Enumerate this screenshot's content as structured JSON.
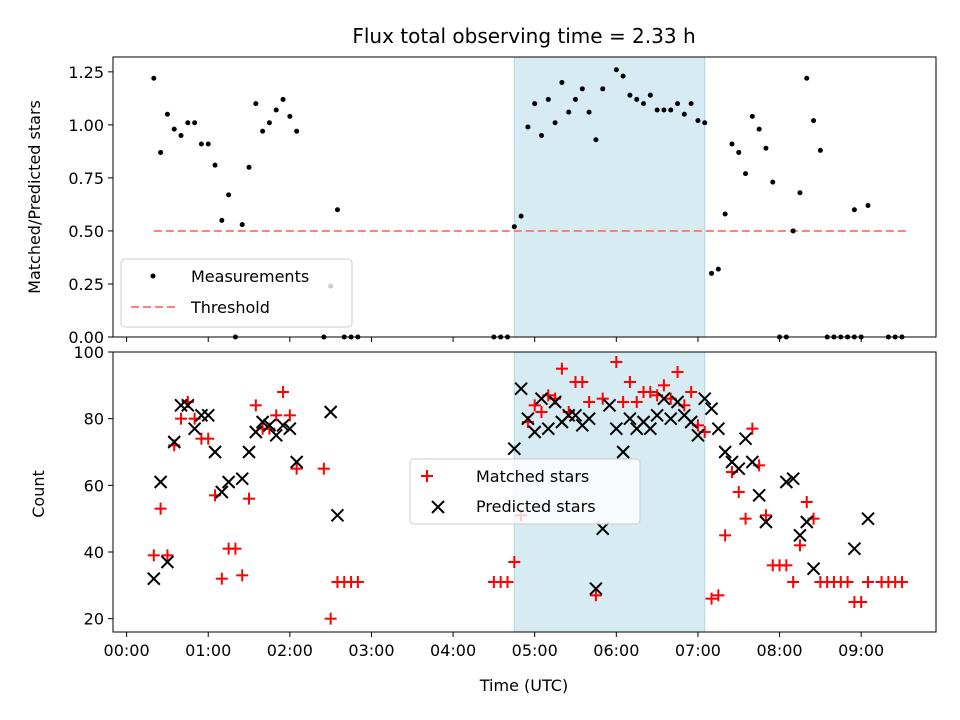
{
  "chart_data": [
    {
      "type": "scatter",
      "title": "Flux total observing time = 2.33 h",
      "xlabel": "",
      "ylabel": "Matched/Predicted stars",
      "xlim": [
        "23:50",
        "09:55"
      ],
      "ylim": [
        0,
        1.32
      ],
      "yticks": [
        "0.00",
        "0.25",
        "0.50",
        "0.75",
        "1.00",
        "1.25"
      ],
      "xticks": [
        "00:00",
        "01:00",
        "02:00",
        "03:00",
        "04:00",
        "05:00",
        "06:00",
        "07:00",
        "08:00",
        "09:00"
      ],
      "highlight": {
        "start": "04:45",
        "end": "07:05",
        "color": "#add8e6"
      },
      "legend": {
        "position": "lower-left",
        "entries": [
          "Measurements",
          "Threshold"
        ]
      },
      "threshold": {
        "name": "Threshold",
        "y": 0.5,
        "x": [
          "00:20",
          "09:35"
        ],
        "color": "#ff7f7f"
      },
      "series": [
        {
          "name": "Measurements",
          "color": "#000000",
          "points": [
            [
              "00:20",
              1.22
            ],
            [
              "00:25",
              0.87
            ],
            [
              "00:30",
              1.05
            ],
            [
              "00:35",
              0.98
            ],
            [
              "00:40",
              0.95
            ],
            [
              "00:45",
              1.01
            ],
            [
              "00:50",
              1.01
            ],
            [
              "00:55",
              0.91
            ],
            [
              "01:00",
              0.91
            ],
            [
              "01:05",
              0.81
            ],
            [
              "01:10",
              0.55
            ],
            [
              "01:15",
              0.67
            ],
            [
              "01:20",
              0.0
            ],
            [
              "01:25",
              0.53
            ],
            [
              "01:30",
              0.8
            ],
            [
              "01:35",
              1.1
            ],
            [
              "01:40",
              0.97
            ],
            [
              "01:45",
              1.01
            ],
            [
              "01:50",
              1.07
            ],
            [
              "01:55",
              1.12
            ],
            [
              "02:00",
              1.04
            ],
            [
              "02:05",
              0.97
            ],
            [
              "02:25",
              0.0
            ],
            [
              "02:30",
              0.24
            ],
            [
              "02:35",
              0.6
            ],
            [
              "02:40",
              0.0
            ],
            [
              "02:45",
              0.0
            ],
            [
              "02:50",
              0.0
            ],
            [
              "04:30",
              0.0
            ],
            [
              "04:35",
              0.0
            ],
            [
              "04:40",
              0.0
            ],
            [
              "04:45",
              0.52
            ],
            [
              "04:50",
              0.57
            ],
            [
              "04:55",
              0.99
            ],
            [
              "05:00",
              1.1
            ],
            [
              "05:05",
              0.95
            ],
            [
              "05:10",
              1.12
            ],
            [
              "05:15",
              1.01
            ],
            [
              "05:20",
              1.2
            ],
            [
              "05:25",
              1.06
            ],
            [
              "05:30",
              1.12
            ],
            [
              "05:35",
              1.17
            ],
            [
              "05:40",
              1.06
            ],
            [
              "05:45",
              0.93
            ],
            [
              "05:50",
              1.17
            ],
            [
              "06:00",
              1.26
            ],
            [
              "06:05",
              1.23
            ],
            [
              "06:10",
              1.14
            ],
            [
              "06:15",
              1.12
            ],
            [
              "06:20",
              1.1
            ],
            [
              "06:25",
              1.14
            ],
            [
              "06:30",
              1.07
            ],
            [
              "06:35",
              1.07
            ],
            [
              "06:40",
              1.07
            ],
            [
              "06:45",
              1.1
            ],
            [
              "06:50",
              1.05
            ],
            [
              "06:55",
              1.1
            ],
            [
              "07:00",
              1.02
            ],
            [
              "07:05",
              1.01
            ],
            [
              "07:10",
              0.3
            ],
            [
              "07:15",
              0.32
            ],
            [
              "07:20",
              0.58
            ],
            [
              "07:25",
              0.91
            ],
            [
              "07:30",
              0.87
            ],
            [
              "07:35",
              0.77
            ],
            [
              "07:40",
              1.04
            ],
            [
              "07:45",
              0.98
            ],
            [
              "07:50",
              0.89
            ],
            [
              "07:55",
              0.73
            ],
            [
              "08:00",
              0.0
            ],
            [
              "08:05",
              0.0
            ],
            [
              "08:10",
              0.5
            ],
            [
              "08:15",
              0.68
            ],
            [
              "08:20",
              1.22
            ],
            [
              "08:25",
              1.02
            ],
            [
              "08:30",
              0.88
            ],
            [
              "08:35",
              0.0
            ],
            [
              "08:40",
              0.0
            ],
            [
              "08:45",
              0.0
            ],
            [
              "08:50",
              0.0
            ],
            [
              "08:55",
              0.0
            ],
            [
              "09:00",
              0.0
            ],
            [
              "08:55",
              0.6
            ],
            [
              "09:05",
              0.62
            ],
            [
              "09:20",
              0.0
            ],
            [
              "09:25",
              0.0
            ],
            [
              "09:30",
              0.0
            ]
          ]
        }
      ]
    },
    {
      "type": "scatter",
      "title": "",
      "xlabel": "Time (UTC)",
      "ylabel": "Count",
      "xlim": [
        "23:50",
        "09:55"
      ],
      "ylim": [
        16,
        100
      ],
      "yticks": [
        "20",
        "40",
        "60",
        "80",
        "100"
      ],
      "xticks": [
        "00:00",
        "01:00",
        "02:00",
        "03:00",
        "04:00",
        "05:00",
        "06:00",
        "07:00",
        "08:00",
        "09:00"
      ],
      "highlight": {
        "start": "04:45",
        "end": "07:05",
        "color": "#add8e6"
      },
      "legend": {
        "position": "center",
        "entries": [
          "Matched stars",
          "Predicted stars"
        ]
      },
      "series": [
        {
          "name": "Matched stars",
          "marker": "plus",
          "color": "#ff0000",
          "points": [
            [
              "00:20",
              39
            ],
            [
              "00:25",
              53
            ],
            [
              "00:30",
              39
            ],
            [
              "00:35",
              72
            ],
            [
              "00:40",
              80
            ],
            [
              "00:45",
              85
            ],
            [
              "00:50",
              80
            ],
            [
              "00:55",
              74
            ],
            [
              "01:00",
              74
            ],
            [
              "01:05",
              57
            ],
            [
              "01:10",
              32
            ],
            [
              "01:15",
              41
            ],
            [
              "01:20",
              41
            ],
            [
              "01:25",
              33
            ],
            [
              "01:30",
              56
            ],
            [
              "01:35",
              84
            ],
            [
              "01:40",
              77
            ],
            [
              "01:45",
              77
            ],
            [
              "01:50",
              81
            ],
            [
              "01:55",
              88
            ],
            [
              "02:00",
              81
            ],
            [
              "02:05",
              65
            ],
            [
              "02:25",
              65
            ],
            [
              "02:30",
              20
            ],
            [
              "02:35",
              31
            ],
            [
              "02:40",
              31
            ],
            [
              "02:45",
              31
            ],
            [
              "02:50",
              31
            ],
            [
              "04:30",
              31
            ],
            [
              "04:35",
              31
            ],
            [
              "04:40",
              31
            ],
            [
              "04:45",
              37
            ],
            [
              "04:50",
              51
            ],
            [
              "04:55",
              79
            ],
            [
              "05:00",
              84
            ],
            [
              "05:05",
              82
            ],
            [
              "05:10",
              87
            ],
            [
              "05:15",
              86
            ],
            [
              "05:20",
              95
            ],
            [
              "05:25",
              82
            ],
            [
              "05:30",
              91
            ],
            [
              "05:35",
              91
            ],
            [
              "05:40",
              85
            ],
            [
              "05:45",
              27
            ],
            [
              "05:50",
              86
            ],
            [
              "06:00",
              97
            ],
            [
              "06:05",
              85
            ],
            [
              "06:10",
              91
            ],
            [
              "06:15",
              85
            ],
            [
              "06:20",
              88
            ],
            [
              "06:25",
              88
            ],
            [
              "06:30",
              87
            ],
            [
              "06:35",
              90
            ],
            [
              "06:40",
              86
            ],
            [
              "06:45",
              94
            ],
            [
              "06:50",
              84
            ],
            [
              "06:55",
              88
            ],
            [
              "07:00",
              78
            ],
            [
              "07:05",
              76
            ],
            [
              "07:10",
              26
            ],
            [
              "07:15",
              27
            ],
            [
              "07:20",
              45
            ],
            [
              "07:25",
              64
            ],
            [
              "07:30",
              58
            ],
            [
              "07:35",
              50
            ],
            [
              "07:40",
              77
            ],
            [
              "07:45",
              66
            ],
            [
              "07:50",
              51
            ],
            [
              "07:55",
              36
            ],
            [
              "08:00",
              36
            ],
            [
              "08:05",
              36
            ],
            [
              "08:10",
              31
            ],
            [
              "08:15",
              42
            ],
            [
              "08:20",
              55
            ],
            [
              "08:25",
              50
            ],
            [
              "08:30",
              31
            ],
            [
              "08:35",
              31
            ],
            [
              "08:40",
              31
            ],
            [
              "08:45",
              31
            ],
            [
              "08:50",
              31
            ],
            [
              "08:55",
              25
            ],
            [
              "09:00",
              25
            ],
            [
              "09:05",
              31
            ],
            [
              "09:15",
              31
            ],
            [
              "09:20",
              31
            ],
            [
              "09:25",
              31
            ],
            [
              "09:30",
              31
            ]
          ]
        },
        {
          "name": "Predicted stars",
          "marker": "x",
          "color": "#000000",
          "points": [
            [
              "00:20",
              32
            ],
            [
              "00:25",
              61
            ],
            [
              "00:30",
              37
            ],
            [
              "00:35",
              73
            ],
            [
              "00:40",
              84
            ],
            [
              "00:45",
              84
            ],
            [
              "00:50",
              77
            ],
            [
              "00:55",
              81
            ],
            [
              "01:00",
              81
            ],
            [
              "01:05",
              70
            ],
            [
              "01:10",
              58
            ],
            [
              "01:15",
              61
            ],
            [
              "01:25",
              62
            ],
            [
              "01:30",
              70
            ],
            [
              "01:35",
              76
            ],
            [
              "01:40",
              79
            ],
            [
              "01:45",
              78
            ],
            [
              "01:50",
              75
            ],
            [
              "01:55",
              78
            ],
            [
              "02:00",
              77
            ],
            [
              "02:05",
              67
            ],
            [
              "02:30",
              82
            ],
            [
              "02:35",
              51
            ],
            [
              "04:45",
              71
            ],
            [
              "04:50",
              89
            ],
            [
              "04:55",
              80
            ],
            [
              "05:00",
              76
            ],
            [
              "05:05",
              86
            ],
            [
              "05:10",
              77
            ],
            [
              "05:15",
              85
            ],
            [
              "05:20",
              79
            ],
            [
              "05:25",
              81
            ],
            [
              "05:30",
              81
            ],
            [
              "05:35",
              78
            ],
            [
              "05:40",
              80
            ],
            [
              "05:45",
              29
            ],
            [
              "05:50",
              47
            ],
            [
              "05:55",
              84
            ],
            [
              "06:00",
              77
            ],
            [
              "06:05",
              70
            ],
            [
              "06:10",
              80
            ],
            [
              "06:15",
              77
            ],
            [
              "06:20",
              79
            ],
            [
              "06:25",
              77
            ],
            [
              "06:30",
              81
            ],
            [
              "06:35",
              86
            ],
            [
              "06:40",
              80
            ],
            [
              "06:45",
              85
            ],
            [
              "06:50",
              81
            ],
            [
              "06:55",
              79
            ],
            [
              "07:00",
              75
            ],
            [
              "07:05",
              86
            ],
            [
              "07:10",
              83
            ],
            [
              "07:15",
              77
            ],
            [
              "07:20",
              70
            ],
            [
              "07:25",
              67
            ],
            [
              "07:30",
              65
            ],
            [
              "07:35",
              74
            ],
            [
              "07:40",
              67
            ],
            [
              "07:45",
              57
            ],
            [
              "07:50",
              49
            ],
            [
              "08:05",
              61
            ],
            [
              "08:10",
              62
            ],
            [
              "08:15",
              45
            ],
            [
              "08:20",
              49
            ],
            [
              "08:25",
              35
            ],
            [
              "08:55",
              41
            ],
            [
              "09:05",
              50
            ]
          ]
        }
      ]
    }
  ]
}
